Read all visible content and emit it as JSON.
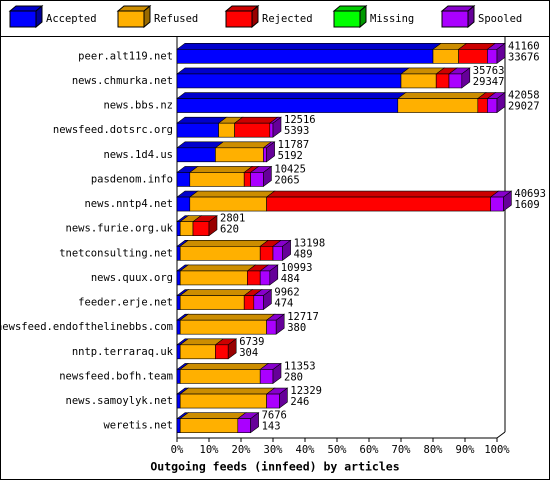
{
  "chart_data": {
    "type": "bar",
    "orientation": "horizontal",
    "stacked": true,
    "xlabel": "Outgoing feeds (innfeed) by articles",
    "categories": [
      "peer.alt119.net",
      "news.chmurka.net",
      "news.bbs.nz",
      "newsfeed.dotsrc.org",
      "news.1d4.us",
      "pasdenom.info",
      "news.nntp4.net",
      "news.furie.org.uk",
      "tnetconsulting.net",
      "news.quux.org",
      "feeder.erje.net",
      "newsfeed.endofthelinebbs.com",
      "nntp.terraraq.uk",
      "newsfeed.bofh.team",
      "news.samoylyk.net",
      "weretis.net"
    ],
    "series": [
      {
        "name": "Accepted",
        "color": "#0000ff",
        "values": [
          80,
          70,
          69,
          13,
          12,
          4,
          4,
          1,
          1,
          1,
          1,
          1,
          1,
          1,
          1,
          1
        ]
      },
      {
        "name": "Refused",
        "color": "#ffb000",
        "values": [
          8,
          11,
          25,
          5,
          15,
          17,
          24,
          4,
          25,
          21,
          20,
          27,
          11,
          25,
          27,
          18
        ]
      },
      {
        "name": "Rejected",
        "color": "#ff0000",
        "values": [
          9,
          4,
          3,
          11,
          0,
          2,
          70,
          5,
          4,
          4,
          3,
          0,
          4,
          0,
          0,
          0
        ]
      },
      {
        "name": "Missing",
        "color": "#00ff00",
        "values": [
          0,
          0,
          0,
          0,
          0,
          0,
          0,
          0,
          0,
          0,
          0,
          0,
          0,
          0,
          0,
          0
        ]
      },
      {
        "name": "Spooled",
        "color": "#aa00ff",
        "values": [
          3,
          4,
          3,
          1,
          1,
          4,
          4,
          0,
          3,
          3,
          3,
          3,
          0,
          4,
          4,
          4
        ]
      }
    ],
    "offered": [
      41160,
      35763,
      42058,
      12516,
      11787,
      10425,
      40693,
      2801,
      13198,
      10993,
      9962,
      12717,
      6739,
      11353,
      12329,
      7676
    ],
    "accepted": [
      33676,
      29347,
      29027,
      5393,
      5192,
      2065,
      1609,
      620,
      489,
      484,
      474,
      380,
      304,
      280,
      246,
      143
    ],
    "xlim": [
      0,
      100
    ],
    "xticks": [
      {
        "value": 0,
        "label": "0%"
      },
      {
        "value": 10,
        "label": "10%"
      },
      {
        "value": 20,
        "label": "20%"
      },
      {
        "value": 30,
        "label": "30%"
      },
      {
        "value": 40,
        "label": "40%"
      },
      {
        "value": 50,
        "label": "50%"
      },
      {
        "value": 60,
        "label": "60%"
      },
      {
        "value": 70,
        "label": "70%"
      },
      {
        "value": 80,
        "label": "80%"
      },
      {
        "value": 90,
        "label": "90%"
      },
      {
        "value": 100,
        "label": "100%"
      }
    ]
  }
}
